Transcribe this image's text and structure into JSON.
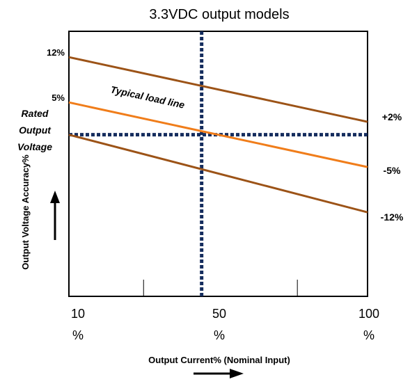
{
  "chart_data": {
    "type": "line",
    "title": "3.3VDC output models",
    "xlabel": "Output Current% (Nominal Input)",
    "ylabel": "Output Voltage Accuracy%",
    "rated_label": [
      "Rated",
      "Output",
      "Voltage"
    ],
    "annotation": "Typical load line",
    "x_ticks": [
      {
        "value": 10,
        "label": [
          "10",
          "%"
        ]
      },
      {
        "value": 50,
        "label": [
          "50",
          "%"
        ]
      },
      {
        "value": 100,
        "label": [
          "100",
          "%"
        ]
      }
    ],
    "y_left_labels": [
      {
        "value": 12,
        "label": "12%"
      },
      {
        "value": 5,
        "label": "5%"
      }
    ],
    "series": [
      {
        "values": [
          {
            "x": 10,
            "y": 12
          },
          {
            "x": 100,
            "y": 2
          }
        ]
      },
      {
        "values": [
          {
            "x": 10,
            "y": 5
          },
          {
            "x": 100,
            "y": -5
          }
        ]
      },
      {
        "values": [
          {
            "x": 10,
            "y": 0
          },
          {
            "x": 100,
            "y": -12
          }
        ]
      }
    ],
    "series_right_labels": [
      "+2%",
      "-5%",
      "-12%"
    ],
    "reference_lines": {
      "x": 50,
      "y": 0
    },
    "xlim": [
      10,
      100
    ],
    "ylim": [
      -25,
      16
    ],
    "colors": {
      "upper": "#9c5317",
      "typical": "#f07d1a",
      "lower": "#9c5317",
      "reference": "#152d5e",
      "axes": "#000000"
    }
  }
}
